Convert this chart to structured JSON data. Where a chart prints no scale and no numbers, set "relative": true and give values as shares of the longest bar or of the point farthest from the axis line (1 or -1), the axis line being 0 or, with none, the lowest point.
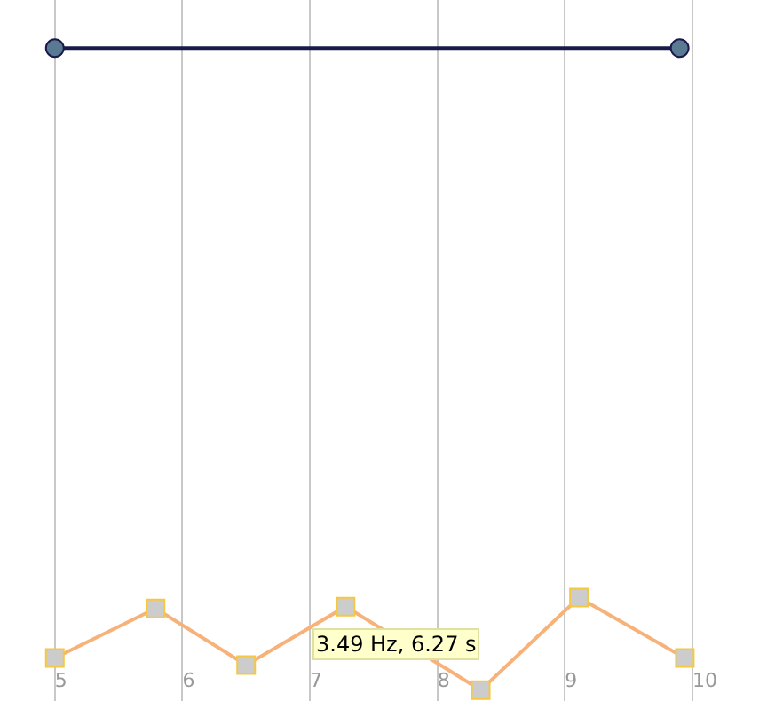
{
  "chart_data": {
    "type": "line",
    "relative": true,
    "xlim": [
      4.57,
      10.71
    ],
    "xticks": [
      5,
      6,
      7,
      8,
      9,
      10
    ],
    "grid": "x",
    "annotations": [
      "3.49 Hz, 6.27 s"
    ],
    "series": [
      {
        "color": "#1a1a4a",
        "marker": "circle",
        "x": [
          5.0,
          9.9
        ],
        "values": [
          1,
          1
        ]
      },
      {
        "color": "#f7b27a",
        "marker": "square",
        "x": [
          5.0,
          5.79,
          6.5,
          7.28,
          8.34,
          9.11,
          9.94
        ],
        "values": [
          0.05,
          0.127,
          0.039,
          0.13,
          0,
          0.144,
          0.05
        ]
      }
    ]
  }
}
